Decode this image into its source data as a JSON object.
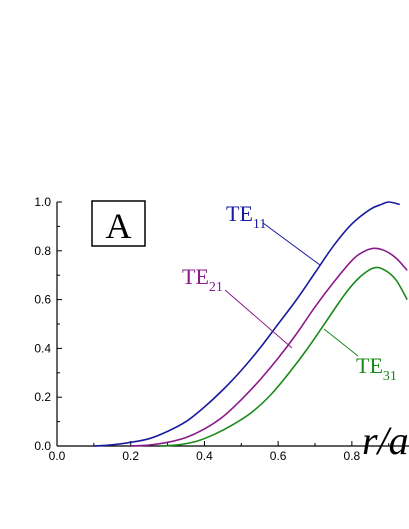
{
  "chart_data": {
    "type": "line",
    "panel_label": "A",
    "xlabel": "r/a",
    "xlim": [
      0.0,
      0.95
    ],
    "ylim": [
      0.0,
      1.0
    ],
    "x_ticks": [
      "0.0",
      "0.2",
      "0.4",
      "0.6",
      "0.8"
    ],
    "x_tick_values": [
      0.0,
      0.2,
      0.4,
      0.6,
      0.8
    ],
    "y_ticks": [
      "0.0",
      "0.2",
      "0.4",
      "0.6",
      "0.8",
      "1.0"
    ],
    "y_tick_values": [
      0.0,
      0.2,
      0.4,
      0.6,
      0.8,
      1.0
    ],
    "series": [
      {
        "name": "TE11",
        "label_main": "TE",
        "label_sub": "11",
        "color": "#1a1aa0",
        "x": [
          0.1,
          0.15,
          0.2,
          0.25,
          0.3,
          0.35,
          0.4,
          0.45,
          0.5,
          0.55,
          0.6,
          0.65,
          0.7,
          0.75,
          0.8,
          0.85,
          0.88,
          0.9,
          0.93
        ],
        "y": [
          0.0,
          0.005,
          0.015,
          0.03,
          0.06,
          0.1,
          0.16,
          0.23,
          0.31,
          0.4,
          0.5,
          0.6,
          0.71,
          0.82,
          0.91,
          0.97,
          0.99,
          1.0,
          0.99
        ]
      },
      {
        "name": "TE21",
        "label_main": "TE",
        "label_sub": "21",
        "color": "#8b1a8b",
        "x": [
          0.2,
          0.25,
          0.3,
          0.35,
          0.4,
          0.45,
          0.5,
          0.55,
          0.6,
          0.65,
          0.7,
          0.75,
          0.8,
          0.83,
          0.86,
          0.89,
          0.92,
          0.95
        ],
        "y": [
          0.0,
          0.004,
          0.015,
          0.035,
          0.07,
          0.12,
          0.19,
          0.27,
          0.36,
          0.46,
          0.57,
          0.67,
          0.76,
          0.795,
          0.81,
          0.8,
          0.77,
          0.72
        ]
      },
      {
        "name": "TE31",
        "label_main": "TE",
        "label_sub": "31",
        "color": "#1a8a1a",
        "x": [
          0.28,
          0.33,
          0.38,
          0.43,
          0.48,
          0.53,
          0.58,
          0.63,
          0.68,
          0.73,
          0.78,
          0.82,
          0.86,
          0.89,
          0.92,
          0.95
        ],
        "y": [
          0.0,
          0.005,
          0.02,
          0.05,
          0.09,
          0.14,
          0.21,
          0.3,
          0.4,
          0.51,
          0.62,
          0.69,
          0.73,
          0.72,
          0.68,
          0.6
        ]
      }
    ]
  }
}
